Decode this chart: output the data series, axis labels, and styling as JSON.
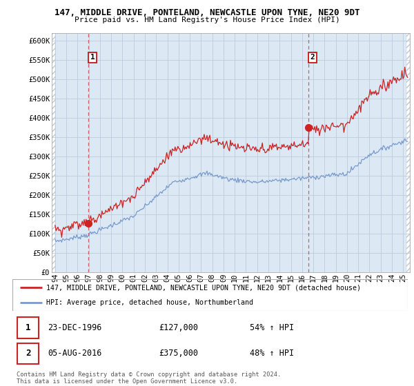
{
  "title1": "147, MIDDLE DRIVE, PONTELAND, NEWCASTLE UPON TYNE, NE20 9DT",
  "title2": "Price paid vs. HM Land Registry's House Price Index (HPI)",
  "ylabel_ticks": [
    "£0",
    "£50K",
    "£100K",
    "£150K",
    "£200K",
    "£250K",
    "£300K",
    "£350K",
    "£400K",
    "£450K",
    "£500K",
    "£550K",
    "£600K"
  ],
  "ytick_vals": [
    0,
    50000,
    100000,
    150000,
    200000,
    250000,
    300000,
    350000,
    400000,
    450000,
    500000,
    550000,
    600000
  ],
  "ylim": [
    0,
    620000
  ],
  "xlim_start": 1993.7,
  "xlim_end": 2025.6,
  "sale1_x": 1996.97,
  "sale1_y": 127000,
  "sale2_x": 2016.59,
  "sale2_y": 375000,
  "sale1_label": "1",
  "sale2_label": "2",
  "red_line_color": "#cc2222",
  "blue_line_color": "#7799cc",
  "plot_bg_color": "#dce9f5",
  "legend_line1": "147, MIDDLE DRIVE, PONTELAND, NEWCASTLE UPON TYNE, NE20 9DT (detached house)",
  "legend_line2": "HPI: Average price, detached house, Northumberland",
  "table_row1": [
    "1",
    "23-DEC-1996",
    "£127,000",
    "54% ↑ HPI"
  ],
  "table_row2": [
    "2",
    "05-AUG-2016",
    "£375,000",
    "48% ↑ HPI"
  ],
  "footnote": "Contains HM Land Registry data © Crown copyright and database right 2024.\nThis data is licensed under the Open Government Licence v3.0.",
  "bg_color": "#ffffff",
  "grid_color": "#bbccdd",
  "dashed_line_color": "#cc4444"
}
